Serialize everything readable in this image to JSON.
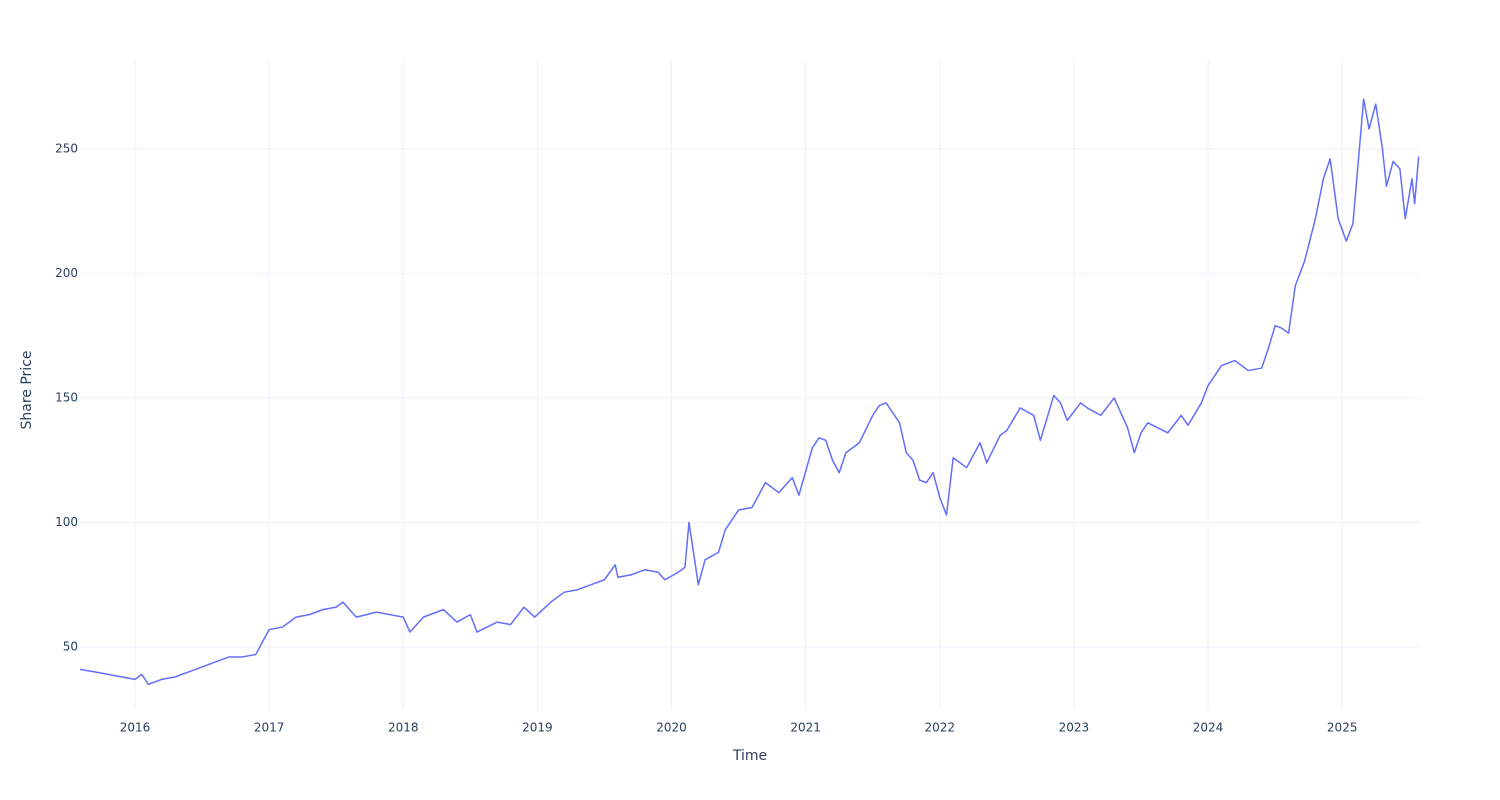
{
  "chart_data": {
    "type": "line",
    "x_label": "Time",
    "y_label": "Share Price",
    "x": [
      2015.59,
      2015.7,
      2015.8,
      2015.9,
      2016.0,
      2016.05,
      2016.1,
      2016.2,
      2016.3,
      2016.4,
      2016.5,
      2016.6,
      2016.7,
      2016.8,
      2016.9,
      2017.0,
      2017.1,
      2017.2,
      2017.3,
      2017.4,
      2017.5,
      2017.55,
      2017.65,
      2017.8,
      2018.0,
      2018.05,
      2018.15,
      2018.3,
      2018.4,
      2018.5,
      2018.55,
      2018.7,
      2018.8,
      2018.9,
      2018.98,
      2019.1,
      2019.2,
      2019.3,
      2019.4,
      2019.5,
      2019.58,
      2019.6,
      2019.7,
      2019.8,
      2019.9,
      2019.95,
      2020.05,
      2020.1,
      2020.13,
      2020.2,
      2020.25,
      2020.35,
      2020.4,
      2020.5,
      2020.6,
      2020.7,
      2020.8,
      2020.9,
      2020.95,
      2021.05,
      2021.1,
      2021.15,
      2021.2,
      2021.25,
      2021.3,
      2021.4,
      2021.5,
      2021.55,
      2021.6,
      2021.65,
      2021.7,
      2021.75,
      2021.8,
      2021.85,
      2021.9,
      2021.95,
      2022.0,
      2022.05,
      2022.1,
      2022.2,
      2022.3,
      2022.35,
      2022.45,
      2022.5,
      2022.6,
      2022.7,
      2022.75,
      2022.85,
      2022.9,
      2022.95,
      2023.05,
      2023.1,
      2023.2,
      2023.3,
      2023.35,
      2023.4,
      2023.45,
      2023.5,
      2023.55,
      2023.7,
      2023.8,
      2023.85,
      2023.95,
      2024.0,
      2024.1,
      2024.2,
      2024.3,
      2024.4,
      2024.45,
      2024.5,
      2024.55,
      2024.6,
      2024.65,
      2024.72,
      2024.8,
      2024.86,
      2024.91,
      2024.97,
      2025.03,
      2025.08,
      2025.12,
      2025.16,
      2025.2,
      2025.25,
      2025.3,
      2025.33,
      2025.38,
      2025.43,
      2025.47,
      2025.52,
      2025.54,
      2025.57
    ],
    "values": [
      41,
      40,
      39,
      38,
      37,
      39,
      35,
      37,
      38,
      40,
      42,
      44,
      46,
      46,
      47,
      57,
      58,
      62,
      63,
      65,
      66,
      68,
      62,
      64,
      62,
      56,
      62,
      65,
      60,
      63,
      56,
      60,
      59,
      66,
      62,
      68,
      72,
      73,
      75,
      77,
      83,
      78,
      79,
      81,
      80,
      77,
      80,
      82,
      100,
      75,
      85,
      88,
      97,
      105,
      106,
      116,
      112,
      118,
      111,
      130,
      134,
      133,
      125,
      120,
      128,
      132,
      143,
      147,
      148,
      144,
      140,
      128,
      125,
      117,
      116,
      120,
      110,
      103,
      126,
      122,
      132,
      124,
      135,
      137,
      146,
      143,
      133,
      151,
      148,
      141,
      148,
      146,
      143,
      150,
      144,
      138,
      128,
      136,
      140,
      136,
      143,
      139,
      148,
      155,
      163,
      165,
      161,
      162,
      170,
      179,
      178,
      176,
      195,
      205,
      222,
      238,
      246,
      222,
      213,
      220,
      245,
      270,
      258,
      268,
      250,
      235,
      245,
      242,
      222,
      238,
      228,
      247
    ],
    "color": "#636efa",
    "xlim": [
      2015.59,
      2025.58
    ],
    "xticks": [
      2016,
      2017,
      2018,
      2019,
      2020,
      2021,
      2022,
      2023,
      2024,
      2025
    ],
    "ylim": [
      24.7,
      285.7
    ],
    "yticks": [
      50,
      100,
      150,
      200,
      250
    ],
    "grid": true
  }
}
